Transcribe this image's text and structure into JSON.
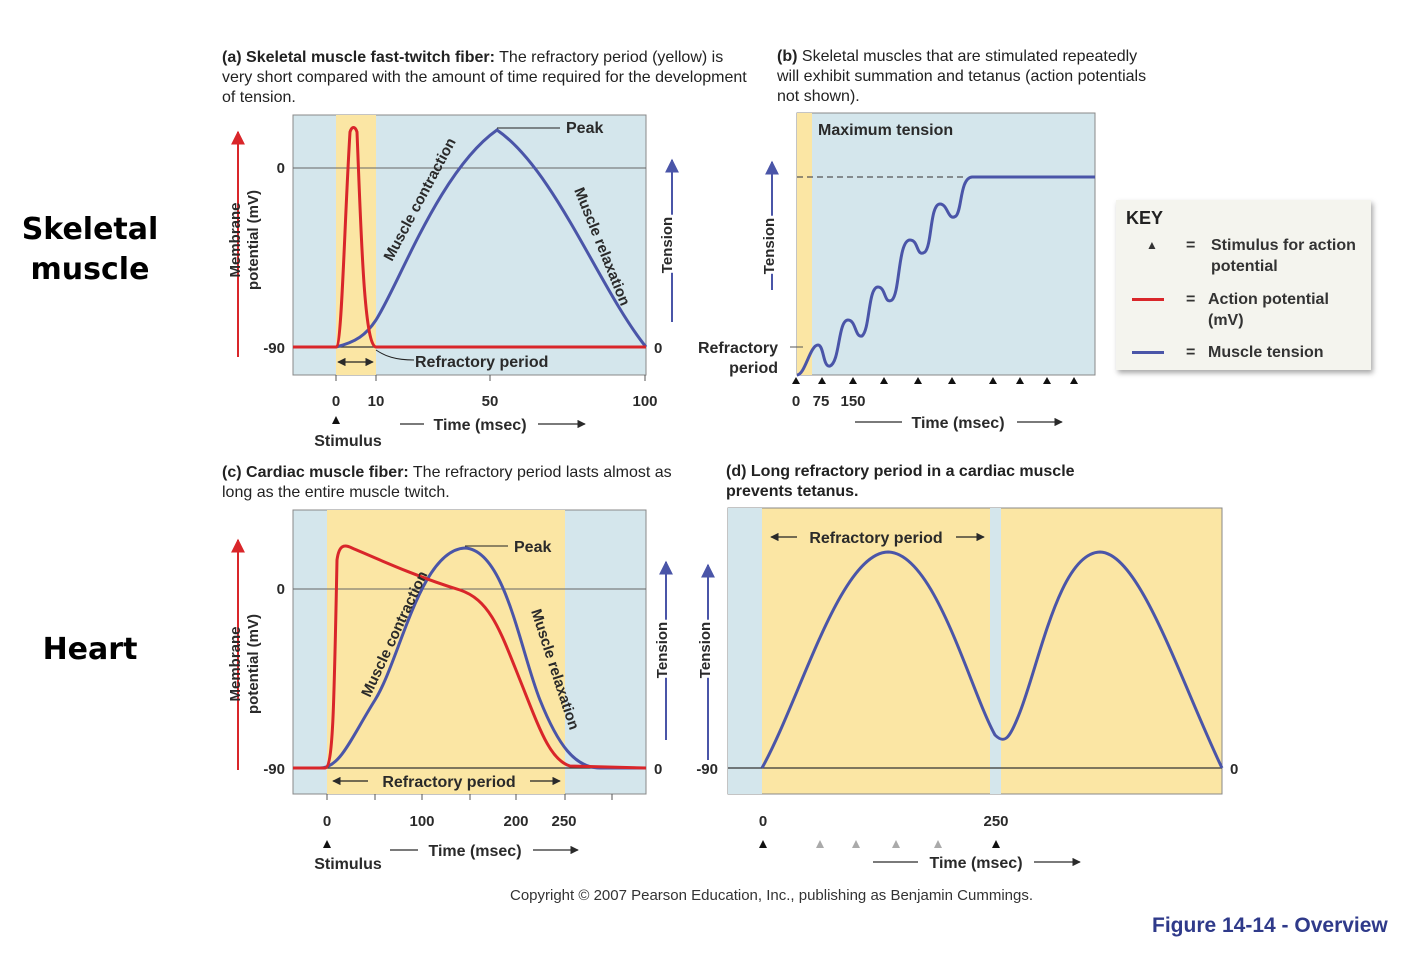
{
  "side_labels": {
    "skeletal": "Skeletal muscle",
    "heart": "Heart"
  },
  "captions": {
    "a": {
      "letter": "(a)",
      "bold": "Skeletal muscle fast-twitch fiber:",
      "rest": "The refractory period (yellow) is very short compared with the amount of time required for the development of tension."
    },
    "b": {
      "letter": "(b)",
      "bold": "",
      "rest": "Skeletal muscles that are stimulated repeatedly will exhibit summation and tetanus (action potentials not shown)."
    },
    "c": {
      "letter": "(c)",
      "bold": "Cardiac muscle fiber:",
      "rest": "The refractory period lasts almost as long as the entire muscle twitch."
    },
    "d": {
      "letter": "(d)",
      "bold": "Long refractory period in a cardiac muscle prevents tetanus.",
      "rest": ""
    }
  },
  "key": {
    "title": "KEY",
    "items": [
      {
        "symbol": "triangle",
        "label": "Stimulus for action potential"
      },
      {
        "symbol": "red-line",
        "label": "Action potential (mV)"
      },
      {
        "symbol": "blue-line",
        "label": "Muscle tension"
      }
    ]
  },
  "colors": {
    "bg": "#d4e6ec",
    "refractory": "#fbe6a4",
    "action_potential": "#d9262a",
    "tension": "#4a55a8",
    "axis_arrow_red": "#d9262a",
    "axis_arrow_blue": "#4a55a8"
  },
  "chart_data": [
    {
      "id": "a",
      "type": "line",
      "xlabel": "Time (msec)",
      "x_ticks": [
        0,
        10,
        50,
        100
      ],
      "xlim": [
        -3,
        100
      ],
      "y_left_label": "Membrane potential (mV)",
      "y_left_ticks": [
        0,
        -90
      ],
      "y_right_label": "Tension",
      "y_right_ticks": [
        0
      ],
      "stimulus_label": "Stimulus",
      "refractory_period": {
        "label": "Refractory period",
        "x": [
          0,
          6
        ]
      },
      "annotations": [
        "Peak",
        "Muscle contraction",
        "Muscle relaxation"
      ],
      "series": [
        {
          "name": "Action potential (mV)",
          "x": [
            0,
            1,
            2,
            3,
            4,
            5,
            6,
            7,
            8
          ],
          "y": [
            -90,
            -80,
            -20,
            20,
            25,
            5,
            -55,
            -85,
            -90
          ]
        },
        {
          "name": "Muscle tension",
          "x": [
            0,
            10,
            20,
            30,
            40,
            50,
            60,
            70,
            80,
            90,
            100
          ],
          "y": [
            0,
            0.18,
            0.48,
            0.8,
            0.97,
            1.0,
            0.95,
            0.78,
            0.5,
            0.2,
            0
          ]
        }
      ]
    },
    {
      "id": "b",
      "type": "line",
      "xlabel": "Time (msec)",
      "x_ticks": [
        0,
        75,
        150
      ],
      "y_right_label": "Tension",
      "annotations": [
        "Maximum tension",
        "Refractory period"
      ],
      "stimulus_count": 10,
      "series": [
        {
          "name": "Muscle tension",
          "x": [
            0,
            1,
            2,
            3,
            4,
            5,
            6,
            7,
            8,
            9
          ],
          "y": [
            0,
            0.1,
            0.24,
            0.4,
            0.55,
            0.7,
            0.82,
            0.9,
            1.0,
            1.0
          ]
        }
      ]
    },
    {
      "id": "c",
      "type": "line",
      "xlabel": "Time (msec)",
      "x_ticks": [
        0,
        100,
        200,
        250
      ],
      "xlim": [
        -35,
        340
      ],
      "y_left_label": "Membrane potential (mV)",
      "y_left_ticks": [
        0,
        -90
      ],
      "y_right_label": "Tension",
      "y_right_ticks": [
        0
      ],
      "stimulus_label": "Stimulus",
      "refractory_period": {
        "label": "Refractory period",
        "x": [
          0,
          250
        ]
      },
      "annotations": [
        "Peak",
        "Muscle contraction",
        "Muscle relaxation"
      ],
      "series": [
        {
          "name": "Action potential (mV)",
          "x": [
            0,
            5,
            10,
            20,
            60,
            120,
            160,
            200,
            240,
            280,
            340
          ],
          "y": [
            -90,
            -60,
            0,
            20,
            10,
            0,
            -15,
            -50,
            -85,
            -90,
            -90
          ]
        },
        {
          "name": "Muscle tension",
          "x": [
            0,
            50,
            100,
            150,
            200,
            250,
            290
          ],
          "y": [
            0,
            0.2,
            0.65,
            1.0,
            0.7,
            0.15,
            0
          ]
        }
      ]
    },
    {
      "id": "d",
      "type": "line",
      "xlabel": "Time (msec)",
      "x_ticks": [
        0,
        250
      ],
      "y_left_label": "Tension",
      "y_left_ticks": [
        -90
      ],
      "y_right_ticks": [
        0
      ],
      "refractory_period": {
        "label": "Refractory period",
        "x": [
          0,
          245
        ]
      },
      "stimulus_times": [
        0,
        60,
        100,
        140,
        185,
        250
      ],
      "series": [
        {
          "name": "Muscle tension",
          "x": [
            0,
            130,
            245,
            360,
            490
          ],
          "y": [
            0,
            1.0,
            0.17,
            1.0,
            0
          ]
        }
      ]
    }
  ],
  "credit": "Copyright © 2007 Pearson Education, Inc., publishing as Benjamin Cummings.",
  "figure_ref": "Figure 14-14 - Overview"
}
